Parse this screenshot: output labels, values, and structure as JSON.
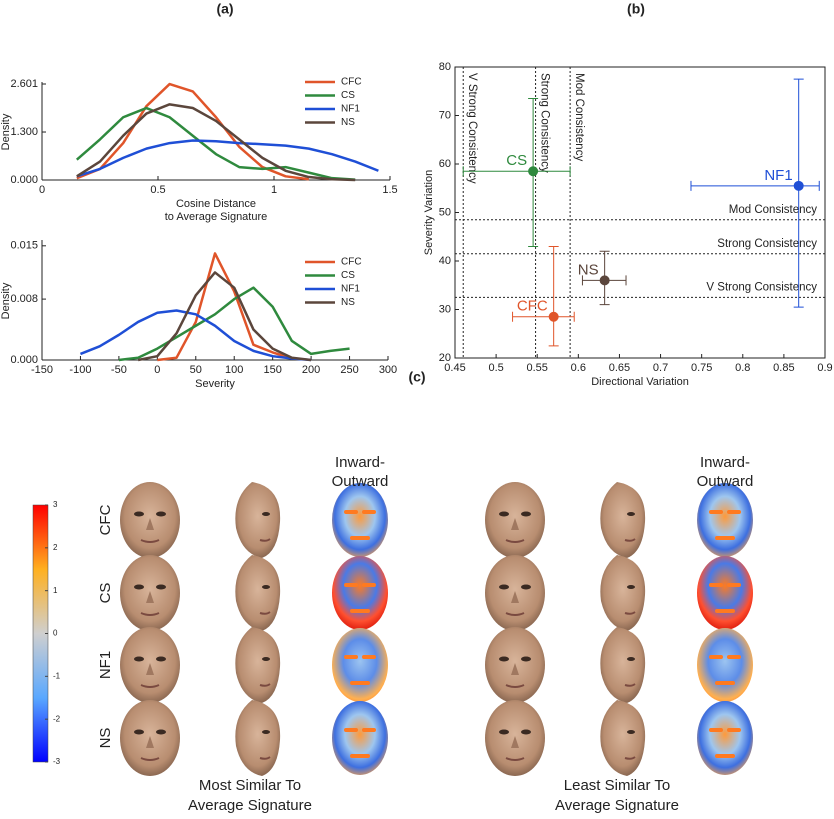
{
  "panel_labels": [
    "(a)",
    "(b)"
  ],
  "chart_data": [
    {
      "type": "line",
      "xlabel": [
        "Cosine Distance",
        "to Average Signature"
      ],
      "ylabel": "Density",
      "x": [
        0.15,
        0.25,
        0.35,
        0.45,
        0.55,
        0.65,
        0.75,
        0.85,
        0.95,
        1.05,
        1.15,
        1.25,
        1.35,
        1.45
      ],
      "series": [
        {
          "name": "CFC",
          "color": "#e0552a",
          "values": [
            0.05,
            0.3,
            1.0,
            2.0,
            2.6,
            2.4,
            1.7,
            0.9,
            0.35,
            0.1,
            0.02,
            null,
            null,
            null
          ]
        },
        {
          "name": "CS",
          "color": "#2f8a3e",
          "values": [
            0.55,
            1.1,
            1.7,
            1.95,
            1.7,
            1.2,
            0.7,
            0.35,
            0.3,
            0.35,
            0.2,
            0.05,
            0.01,
            null
          ]
        },
        {
          "name": "NF1",
          "color": "#1f4fd6",
          "values": [
            0.1,
            0.3,
            0.6,
            0.85,
            1.0,
            1.07,
            1.05,
            1.0,
            0.97,
            0.93,
            0.85,
            0.7,
            0.5,
            0.25
          ]
        },
        {
          "name": "NS",
          "color": "#5b463c",
          "values": [
            0.1,
            0.5,
            1.2,
            1.8,
            2.05,
            1.95,
            1.6,
            1.1,
            0.6,
            0.25,
            0.08,
            0.02,
            0.0,
            null
          ]
        }
      ],
      "xlim": [
        0,
        1.5
      ],
      "xticks": [
        0,
        0.5,
        1,
        1.5
      ],
      "ylim": [
        0,
        2.601
      ],
      "yticks": [
        {
          "value": 0,
          "label": "0.000"
        },
        {
          "value": 1.3,
          "label": "1.300"
        },
        {
          "value": 2.601,
          "label": "2.601"
        }
      ]
    },
    {
      "type": "line",
      "xlabel": [
        "Severity"
      ],
      "ylabel": "Density",
      "x": [
        -100,
        -75,
        -50,
        -25,
        0,
        25,
        50,
        75,
        100,
        125,
        150,
        175,
        200,
        225,
        250
      ],
      "series": [
        {
          "name": "CFC",
          "color": "#e0552a",
          "values": [
            null,
            null,
            null,
            null,
            0,
            0.0003,
            0.005,
            0.014,
            0.009,
            0.002,
            0.001,
            0.0002,
            null,
            null,
            null
          ]
        },
        {
          "name": "CS",
          "color": "#2f8a3e",
          "values": [
            null,
            null,
            0,
            0.0003,
            0.0015,
            0.003,
            0.0045,
            0.006,
            0.008,
            0.0095,
            0.007,
            0.0025,
            0.0008,
            0.0012,
            0.0015
          ]
        },
        {
          "name": "NF1",
          "color": "#1f4fd6",
          "values": [
            0.0008,
            0.0018,
            0.0033,
            0.005,
            0.0062,
            0.0065,
            0.006,
            0.0045,
            0.0025,
            0.0012,
            0.0005,
            0.0002,
            0,
            null,
            null
          ]
        },
        {
          "name": "NS",
          "color": "#5b463c",
          "values": [
            null,
            null,
            null,
            0,
            0.0005,
            0.0035,
            0.0085,
            0.0115,
            0.0095,
            0.004,
            0.0015,
            0.0003,
            0,
            null,
            null
          ]
        }
      ],
      "xlim": [
        -150,
        300
      ],
      "xticks": [
        -150,
        -100,
        -50,
        0,
        50,
        100,
        150,
        200,
        250,
        300
      ],
      "ylim": [
        0,
        0.0155
      ],
      "yticks": [
        {
          "value": 0,
          "label": "0.000"
        },
        {
          "value": 0.008,
          "label": "0.008"
        },
        {
          "value": 0.015,
          "label": "0.015"
        }
      ]
    },
    {
      "type": "errorbar",
      "xlabel": "Directional Variation",
      "ylabel": "Severity Variation",
      "series": [
        {
          "name": "CS",
          "color": "#2f8a3e",
          "x": 0.545,
          "y": 58.5,
          "xerr": [
            0.085,
            0.045
          ],
          "yerr": [
            15.5,
            15
          ]
        },
        {
          "name": "NF1",
          "color": "#1f4fd6",
          "x": 0.868,
          "y": 55.5,
          "xerr": [
            0.131,
            0.025
          ],
          "yerr": [
            25,
            22
          ]
        },
        {
          "name": "NS",
          "color": "#5b463c",
          "x": 0.632,
          "y": 36,
          "xerr": [
            0.027,
            0.026
          ],
          "yerr": [
            5,
            6
          ]
        },
        {
          "name": "CFC",
          "color": "#e0552a",
          "x": 0.57,
          "y": 28.5,
          "xerr": [
            0.05,
            0.025
          ],
          "yerr": [
            6,
            14.5
          ]
        }
      ],
      "vlines": [
        {
          "value": 0.46,
          "label": "V Strong Consistency"
        },
        {
          "value": 0.548,
          "label": "Strong Consistency"
        },
        {
          "value": 0.59,
          "label": "Mod Consistency"
        }
      ],
      "hlines": [
        {
          "value": 48.5,
          "label": "Mod Consistency"
        },
        {
          "value": 41.5,
          "label": "Strong Consistency"
        },
        {
          "value": 32.5,
          "label": "V Strong Consistency"
        }
      ],
      "xlim": [
        0.45,
        0.9
      ],
      "xticks": [
        0.45,
        0.5,
        0.55,
        0.6,
        0.65,
        0.7,
        0.75,
        0.8,
        0.85,
        0.9
      ],
      "ylim": [
        20,
        80
      ],
      "yticks": [
        20,
        30,
        40,
        50,
        60,
        70,
        80
      ]
    },
    {
      "type": "colorbar",
      "colors": [
        "#0000ff",
        "#5aa8ff",
        "#cfcfcf",
        "#ffb020",
        "#ff0000"
      ],
      "ylim": [
        -3,
        3
      ],
      "yticks": [
        3,
        2,
        1,
        0,
        -1,
        -2,
        -3
      ]
    }
  ],
  "panel_c": {
    "label": "(c)",
    "rows": [
      "CFC",
      "CS",
      "NF1",
      "NS"
    ],
    "column_title": [
      "Inward-",
      "Outward"
    ],
    "captions": [
      [
        "Most Similar To",
        "Average Signature"
      ],
      [
        "Least Similar To",
        "Average Signature"
      ]
    ]
  }
}
